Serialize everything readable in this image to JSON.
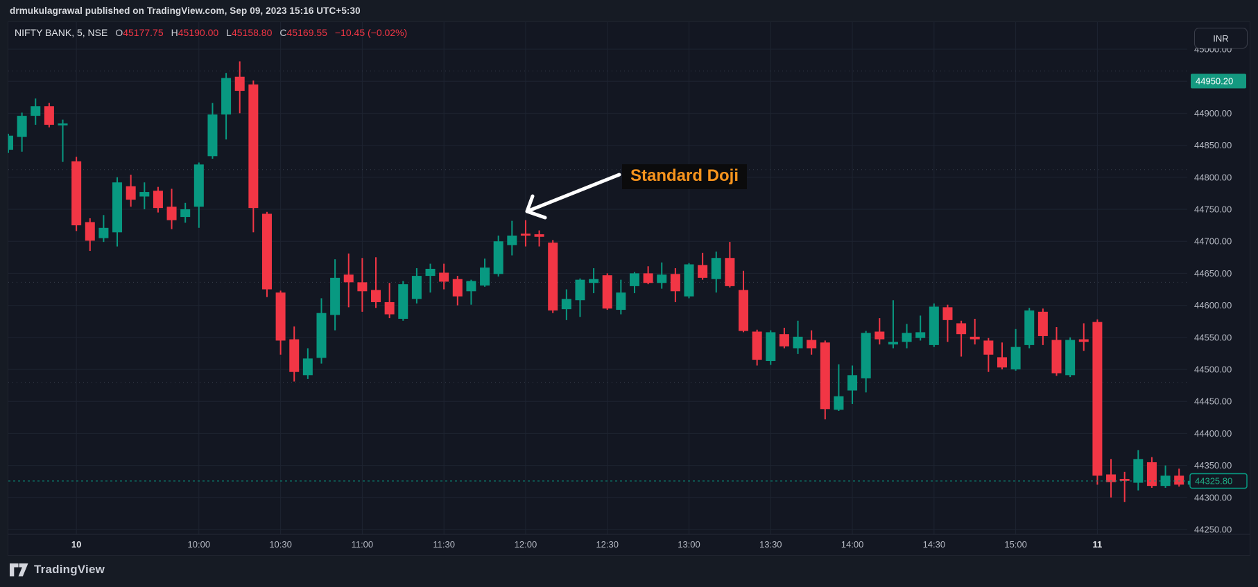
{
  "header": {
    "published_line": "drmukulagrawal published on TradingView.com, Sep 09, 2023 15:16 UTC+5:30"
  },
  "legend": {
    "symbol": "NIFTY BANK, 5, NSE",
    "open_label": "O",
    "open_value": "45177.75",
    "high_label": "H",
    "high_value": "45190.00",
    "low_label": "L",
    "low_value": "45158.80",
    "close_label": "C",
    "close_value": "45169.55",
    "change": "−10.45 (−0.02%)"
  },
  "toolbar": {
    "currency_button": "INR"
  },
  "annotation": {
    "label": "Standard Doji",
    "target_time": "12:00",
    "target_price": 44711
  },
  "price_axis": {
    "labels": [
      {
        "text": "45000.00",
        "price": 45000
      },
      {
        "text": "44900.00",
        "price": 44900
      },
      {
        "text": "44850.00",
        "price": 44850
      },
      {
        "text": "44800.00",
        "price": 44800
      },
      {
        "text": "44750.00",
        "price": 44750
      },
      {
        "text": "44700.00",
        "price": 44700
      },
      {
        "text": "44650.00",
        "price": 44650
      },
      {
        "text": "44600.00",
        "price": 44600
      },
      {
        "text": "44550.00",
        "price": 44550
      },
      {
        "text": "44500.00",
        "price": 44500
      },
      {
        "text": "44450.00",
        "price": 44450
      },
      {
        "text": "44400.00",
        "price": 44400
      },
      {
        "text": "44350.00",
        "price": 44350
      },
      {
        "text": "44300.00",
        "price": 44300
      },
      {
        "text": "44250.00",
        "price": 44250
      }
    ],
    "marked_label": {
      "text": "44950.20",
      "price": 44950.2,
      "style": "filled-green"
    },
    "last_price_label": {
      "text": "44325.80",
      "price": 44325.8,
      "style": "outlined-green"
    }
  },
  "time_axis": {
    "ticks": [
      {
        "index": 5,
        "label": "10",
        "bold": true
      },
      {
        "index": 14,
        "label": "10:00",
        "bold": false
      },
      {
        "index": 20,
        "label": "10:30",
        "bold": false
      },
      {
        "index": 26,
        "label": "11:00",
        "bold": false
      },
      {
        "index": 32,
        "label": "11:30",
        "bold": false
      },
      {
        "index": 38,
        "label": "12:00",
        "bold": false
      },
      {
        "index": 44,
        "label": "12:30",
        "bold": false
      },
      {
        "index": 50,
        "label": "13:00",
        "bold": false
      },
      {
        "index": 56,
        "label": "13:30",
        "bold": false
      },
      {
        "index": 62,
        "label": "14:00",
        "bold": false
      },
      {
        "index": 68,
        "label": "14:30",
        "bold": false
      },
      {
        "index": 74,
        "label": "15:00",
        "bold": false
      },
      {
        "index": 80,
        "label": "11",
        "bold": true
      }
    ]
  },
  "footer": {
    "brand": "TradingView"
  },
  "colors": {
    "up": "#089981",
    "down": "#f23645",
    "background": "#131722",
    "grid": "#1e2431",
    "axis_text": "#b6bac4",
    "axis_text_bold": "#e3e5ea",
    "dotted_line": "#3c4250",
    "last_price_line": "#089981",
    "marked_label_bg": "#149980",
    "annotation_text": "#f7941d",
    "arrow": "#ffffff"
  },
  "chart_data": {
    "type": "candlestick",
    "symbol": "NIFTY BANK",
    "interval": "5",
    "exchange": "NSE",
    "ylim": [
      44250,
      45010
    ],
    "grid": true,
    "price_gridlines": [
      45000,
      44950,
      44900,
      44850,
      44800,
      44750,
      44700,
      44650,
      44600,
      44550,
      44500,
      44450,
      44400,
      44350,
      44300,
      44250
    ],
    "dotted_levels": [
      44966,
      44812,
      44636,
      44480
    ],
    "last_price": 44325.8,
    "marked_price": 44950.2,
    "sessions": [
      {
        "day": "prev",
        "start_index": 0
      },
      {
        "day": "10",
        "start_index": 5
      },
      {
        "day": "11",
        "start_index": 80
      }
    ],
    "columns": [
      "time",
      "open",
      "high",
      "low",
      "close"
    ],
    "candles": [
      [
        "15:05",
        44843,
        44868,
        44838,
        44865
      ],
      [
        "15:10",
        44863,
        44901,
        44840,
        44896
      ],
      [
        "15:15",
        44896,
        44923,
        44882,
        44911
      ],
      [
        "15:20",
        44911,
        44916,
        44878,
        44882
      ],
      [
        "15:25",
        44882,
        44890,
        44824,
        44884
      ],
      [
        "9:15",
        44825,
        44832,
        44716,
        44725
      ],
      [
        "9:20",
        44730,
        44736,
        44685,
        44701
      ],
      [
        "9:25",
        44705,
        44741,
        44699,
        44721
      ],
      [
        "9:30",
        44714,
        44800,
        44692,
        44792
      ],
      [
        "9:35",
        44786,
        44804,
        44754,
        44765
      ],
      [
        "9:40",
        44770,
        44792,
        44750,
        44777
      ],
      [
        "9:45",
        44779,
        44785,
        44745,
        44752
      ],
      [
        "9:50",
        44754,
        44782,
        44719,
        44733
      ],
      [
        "9:55",
        44738,
        44760,
        44729,
        44750
      ],
      [
        "10:00",
        44754,
        44823,
        44721,
        44820
      ],
      [
        "10:05",
        44833,
        44916,
        44829,
        44898
      ],
      [
        "10:10",
        44898,
        44963,
        44859,
        44955
      ],
      [
        "10:15",
        44957,
        44981,
        44900,
        44935
      ],
      [
        "10:20",
        44945,
        44951,
        44714,
        44752
      ],
      [
        "10:25",
        44743,
        44746,
        44613,
        44625
      ],
      [
        "10:30",
        44620,
        44623,
        44523,
        44545
      ],
      [
        "10:35",
        44547,
        44567,
        44481,
        44496
      ],
      [
        "10:40",
        44491,
        44533,
        44485,
        44517
      ],
      [
        "10:45",
        44518,
        44611,
        44509,
        44588
      ],
      [
        "10:50",
        44585,
        44672,
        44561,
        44643
      ],
      [
        "10:55",
        44648,
        44681,
        44597,
        44636
      ],
      [
        "11:00",
        44636,
        44674,
        44590,
        44622
      ],
      [
        "11:05",
        44624,
        44675,
        44596,
        44605
      ],
      [
        "11:10",
        44605,
        44635,
        44580,
        44586
      ],
      [
        "11:15",
        44579,
        44638,
        44576,
        44633
      ],
      [
        "11:20",
        44610,
        44658,
        44603,
        44646
      ],
      [
        "11:25",
        44646,
        44665,
        44620,
        44657
      ],
      [
        "11:30",
        44651,
        44665,
        44625,
        44637
      ],
      [
        "11:35",
        44641,
        44646,
        44600,
        44614
      ],
      [
        "11:40",
        44622,
        44640,
        44601,
        44638
      ],
      [
        "11:45",
        44631,
        44673,
        44629,
        44659
      ],
      [
        "11:50",
        44649,
        44709,
        44645,
        44700
      ],
      [
        "11:55",
        44694,
        44732,
        44678,
        44709
      ],
      [
        "12:00",
        44712,
        44733,
        44692,
        44710
      ],
      [
        "12:05",
        44711,
        44717,
        44692,
        44707
      ],
      [
        "12:10",
        44698,
        44702,
        44588,
        44592
      ],
      [
        "12:15",
        44594,
        44625,
        44577,
        44610
      ],
      [
        "12:20",
        44608,
        44642,
        44582,
        44640
      ],
      [
        "12:25",
        44635,
        44658,
        44619,
        44641
      ],
      [
        "12:30",
        44647,
        44650,
        44593,
        44595
      ],
      [
        "12:35",
        44593,
        44640,
        44586,
        44620
      ],
      [
        "12:40",
        44630,
        44652,
        44619,
        44650
      ],
      [
        "12:45",
        44650,
        44661,
        44633,
        44635
      ],
      [
        "12:50",
        44635,
        44667,
        44626,
        44648
      ],
      [
        "12:55",
        44649,
        44658,
        44605,
        44622
      ],
      [
        "13:00",
        44614,
        44666,
        44611,
        44664
      ],
      [
        "13:05",
        44663,
        44682,
        44640,
        44643
      ],
      [
        "13:10",
        44641,
        44684,
        44620,
        44674
      ],
      [
        "13:15",
        44674,
        44699,
        44628,
        44630
      ],
      [
        "13:20",
        44624,
        44654,
        44558,
        44560
      ],
      [
        "13:25",
        44559,
        44562,
        44506,
        44515
      ],
      [
        "13:30",
        44513,
        44561,
        44507,
        44558
      ],
      [
        "13:35",
        44555,
        44565,
        44533,
        44536
      ],
      [
        "13:40",
        44533,
        44576,
        44524,
        44551
      ],
      [
        "13:45",
        44546,
        44561,
        44523,
        44533
      ],
      [
        "13:50",
        44542,
        44545,
        44422,
        44438
      ],
      [
        "13:55",
        44437,
        44508,
        44435,
        44458
      ],
      [
        "14:00",
        44467,
        44506,
        44446,
        44491
      ],
      [
        "14:05",
        44486,
        44560,
        44464,
        44557
      ],
      [
        "14:10",
        44559,
        44580,
        44539,
        44547
      ],
      [
        "14:15",
        44539,
        44608,
        44533,
        44543
      ],
      [
        "14:20",
        44543,
        44571,
        44533,
        44557
      ],
      [
        "14:25",
        44549,
        44584,
        44545,
        44558
      ],
      [
        "14:30",
        44538,
        44603,
        44535,
        44598
      ],
      [
        "14:35",
        44597,
        44601,
        44543,
        44577
      ],
      [
        "14:40",
        44572,
        44576,
        44520,
        44555
      ],
      [
        "14:45",
        44551,
        44579,
        44539,
        44547
      ],
      [
        "14:50",
        44545,
        44549,
        44496,
        44523
      ],
      [
        "14:55",
        44519,
        44542,
        44500,
        44503
      ],
      [
        "15:00",
        44500,
        44563,
        44498,
        44535
      ],
      [
        "15:05",
        44538,
        44596,
        44533,
        44592
      ],
      [
        "15:10",
        44590,
        44595,
        44538,
        44552
      ],
      [
        "15:15",
        44546,
        44566,
        44490,
        44494
      ],
      [
        "15:20",
        44491,
        44550,
        44488,
        44546
      ],
      [
        "15:25",
        44547,
        44572,
        44529,
        44543
      ],
      [
        "9:15",
        44574,
        44578,
        44320,
        44334
      ],
      [
        "9:20",
        44336,
        44360,
        44300,
        44324
      ],
      [
        "9:25",
        44329,
        44340,
        44293,
        44326
      ],
      [
        "9:30",
        44323,
        44374,
        44311,
        44360
      ],
      [
        "9:35",
        44355,
        44363,
        44315,
        44318
      ],
      [
        "9:40",
        44318,
        44350,
        44315,
        44334
      ],
      [
        "9:45",
        44334,
        44345,
        44317,
        44320
      ],
      [
        "9:50",
        44320,
        44332,
        44316,
        44326
      ]
    ]
  }
}
